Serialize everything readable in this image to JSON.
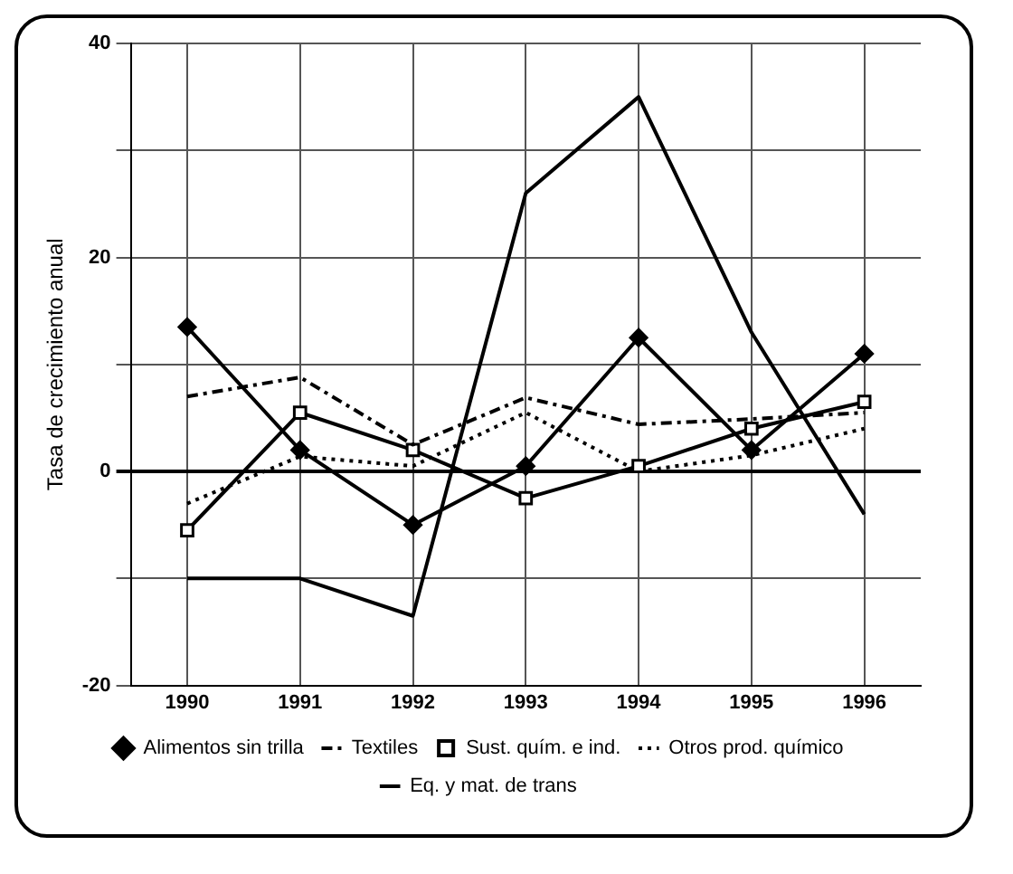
{
  "chart_data": {
    "type": "line",
    "ylabel": "Tasa de crecimiento anual",
    "categories": [
      "1990",
      "1991",
      "1992",
      "1993",
      "1994",
      "1995",
      "1996"
    ],
    "series": [
      {
        "name": "Alimentos sin trilla",
        "color": "#000000",
        "marker": "diamond",
        "line_style": "solid",
        "values": [
          13.5,
          2,
          -5,
          0.5,
          12.5,
          2,
          11
        ]
      },
      {
        "name": "Textiles",
        "color": "#000000",
        "marker": "none",
        "line_style": "dashed",
        "values": [
          7,
          8.8,
          2.5,
          6.9,
          4.4,
          4.9,
          5.5
        ]
      },
      {
        "name": "Sust. quím. e ind.",
        "color": "#000000",
        "marker": "square",
        "line_style": "solid",
        "values": [
          -5.5,
          5.5,
          2,
          -2.5,
          0.5,
          4,
          6.5
        ]
      },
      {
        "name": "Otros prod. químico",
        "color": "#000000",
        "marker": "none",
        "line_style": "dotted",
        "values": [
          -3,
          1.4,
          0.5,
          5.5,
          0,
          1.5,
          4
        ]
      },
      {
        "name": "Eq. y mat. de trans",
        "color": "#000000",
        "marker": "none",
        "line_style": "solid",
        "values": [
          -10,
          -10,
          -13.5,
          26,
          35,
          13,
          -4
        ]
      }
    ],
    "ylim": [
      -20,
      40
    ],
    "yticks": [
      -20,
      {
        "value": -10,
        "label": null
      },
      0,
      {
        "value": 10,
        "label": null
      },
      20,
      {
        "value": 30,
        "label": null
      },
      40
    ],
    "grid": true,
    "legend": "bottom"
  }
}
